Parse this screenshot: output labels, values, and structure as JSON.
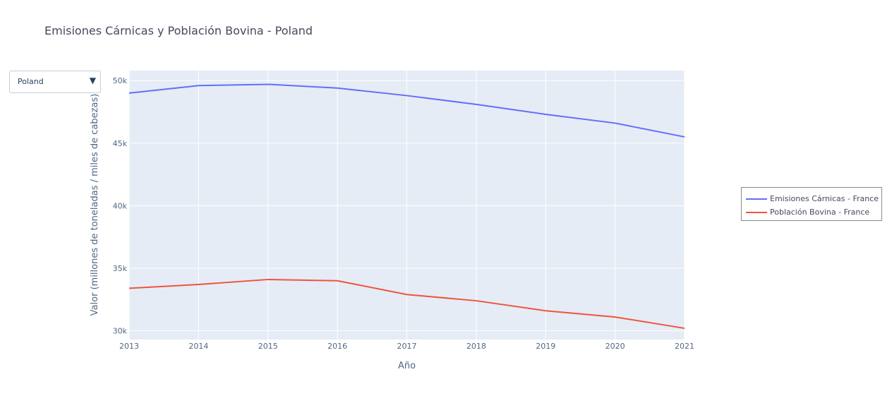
{
  "dropdown": {
    "selected": "Poland",
    "arrow_icon": "triangle-down-icon"
  },
  "chart_data": {
    "type": "line",
    "title": "Emisiones Cárnicas y Población Bovina - Poland",
    "xlabel": "Año",
    "ylabel": "Valor (millones de toneladas / miles de cabezas)",
    "x": [
      2013,
      2014,
      2015,
      2016,
      2017,
      2018,
      2019,
      2020,
      2021
    ],
    "xlim": [
      2013,
      2021
    ],
    "ylim": [
      29300,
      50800
    ],
    "yticks": [
      30000,
      35000,
      40000,
      45000,
      50000
    ],
    "ytick_labels": [
      "30k",
      "35k",
      "40k",
      "45k",
      "50k"
    ],
    "grid": true,
    "legend_position": "right",
    "series": [
      {
        "name": "Emisiones Cárnicas - France",
        "color": "#636efa",
        "values": [
          49000,
          49600,
          49700,
          49400,
          48800,
          48100,
          47300,
          46600,
          45500
        ]
      },
      {
        "name": "Población Bovina - France",
        "color": "#ef553b",
        "values": [
          33400,
          33700,
          34100,
          34000,
          32900,
          32400,
          31600,
          31100,
          30200
        ]
      }
    ]
  }
}
